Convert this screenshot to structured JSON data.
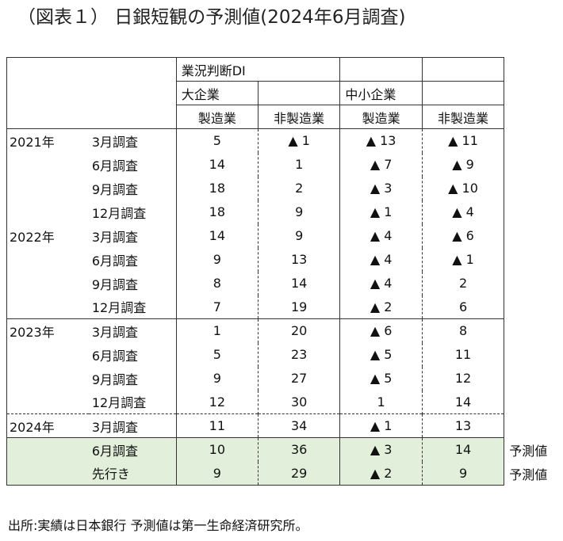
{
  "title": "（図表１） 日銀短観の予測値(2024年6月調査)",
  "header": {
    "group": "業況判断DI",
    "large": "大企業",
    "small": "中小企業",
    "col_mfg": "製造業",
    "col_nonmfg": "非製造業"
  },
  "marker": "▲",
  "rows": [
    {
      "year": "2021年",
      "month": "3月調査",
      "v": [
        "5",
        "▲ 1",
        "▲ 13",
        "▲ 11"
      ],
      "note": ""
    },
    {
      "year": "",
      "month": "6月調査",
      "v": [
        "14",
        "1",
        "▲ 7",
        "▲ 9"
      ],
      "note": ""
    },
    {
      "year": "",
      "month": "9月調査",
      "v": [
        "18",
        "2",
        "▲ 3",
        "▲ 10"
      ],
      "note": ""
    },
    {
      "year": "",
      "month": "12月調査",
      "v": [
        "18",
        "9",
        "▲ 1",
        "▲ 4"
      ],
      "note": ""
    },
    {
      "year": "2022年",
      "month": "3月調査",
      "v": [
        "14",
        "9",
        "▲ 4",
        "▲ 6"
      ],
      "note": ""
    },
    {
      "year": "",
      "month": "6月調査",
      "v": [
        "9",
        "13",
        "▲ 4",
        "▲ 1"
      ],
      "note": ""
    },
    {
      "year": "",
      "month": "9月調査",
      "v": [
        "8",
        "14",
        "▲ 4",
        "2"
      ],
      "note": ""
    },
    {
      "year": "",
      "month": "12月調査",
      "v": [
        "7",
        "19",
        "▲ 2",
        "6"
      ],
      "note": ""
    },
    {
      "year": "2023年",
      "month": "3月調査",
      "v": [
        "1",
        "20",
        "▲ 6",
        "8"
      ],
      "note": ""
    },
    {
      "year": "",
      "month": "6月調査",
      "v": [
        "5",
        "23",
        "▲ 5",
        "11"
      ],
      "note": ""
    },
    {
      "year": "",
      "month": "9月調査",
      "v": [
        "9",
        "27",
        "▲ 5",
        "12"
      ],
      "note": ""
    },
    {
      "year": "",
      "month": "12月調査",
      "v": [
        "12",
        "30",
        "1",
        "14"
      ],
      "note": ""
    },
    {
      "year": "2024年",
      "month": "3月調査",
      "v": [
        "11",
        "34",
        "▲ 1",
        "13"
      ],
      "note": ""
    },
    {
      "year": "",
      "month": "6月調査",
      "v": [
        "10",
        "36",
        "▲ 3",
        "14"
      ],
      "note": "予測値"
    },
    {
      "year": "",
      "month": "先行き",
      "v": [
        "9",
        "29",
        "▲ 2",
        "9"
      ],
      "note": "予測値"
    }
  ],
  "source": "出所:実績は日本銀行 予測値は第一生命経済研究所。"
}
